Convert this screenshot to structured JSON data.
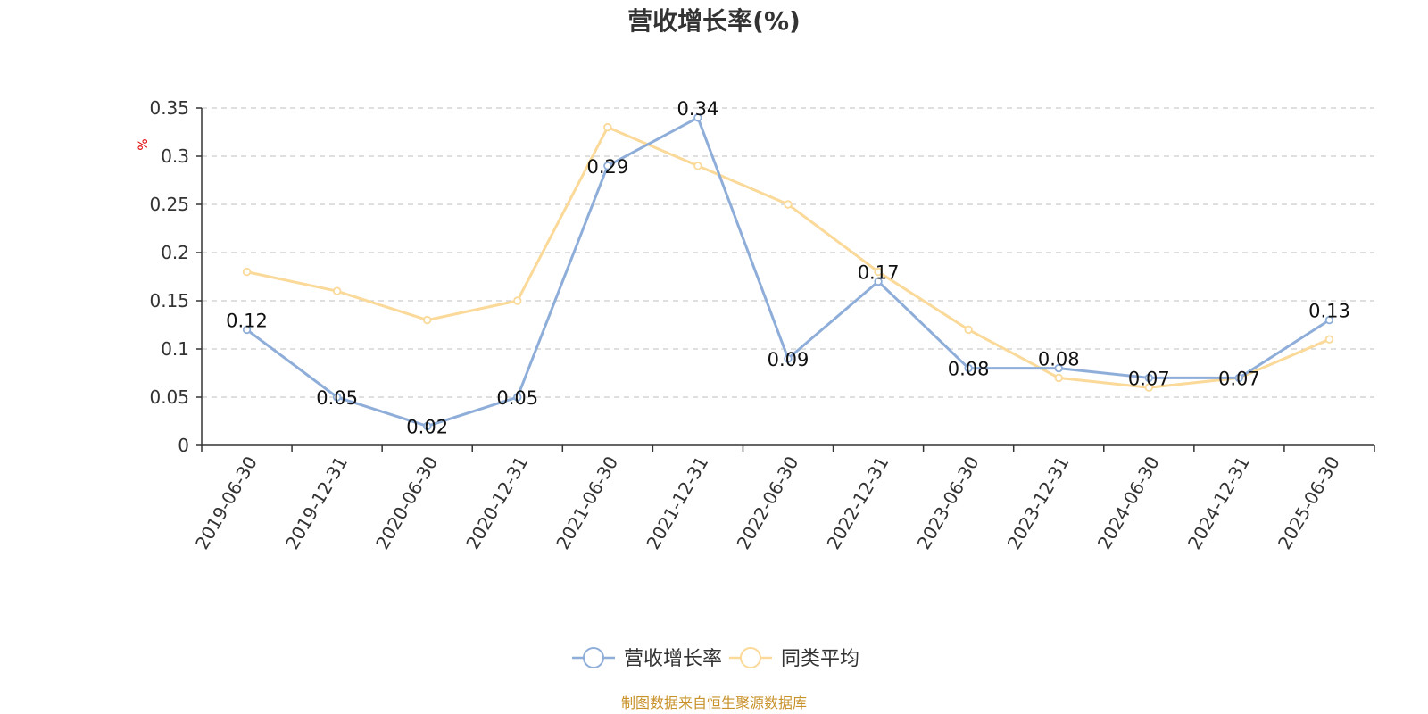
{
  "chart_data": {
    "type": "line",
    "title": "营收增长率(%)",
    "ylabel": "%",
    "xlabel": "",
    "categories": [
      "2019-06-30",
      "2019-12-31",
      "2020-06-30",
      "2020-12-31",
      "2021-06-30",
      "2021-12-31",
      "2022-06-30",
      "2022-12-31",
      "2023-06-30",
      "2023-12-31",
      "2024-06-30",
      "2024-12-31",
      "2025-06-30"
    ],
    "series": [
      {
        "name": "营收增长率",
        "color": "#8eaed9",
        "values": [
          0.12,
          0.05,
          0.02,
          0.05,
          0.29,
          0.34,
          0.09,
          0.17,
          0.08,
          0.08,
          0.07,
          0.07,
          0.13
        ],
        "labels": [
          "0.12",
          "0.05",
          "0.02",
          "0.05",
          "0.29",
          "0.34",
          "0.09",
          "0.17",
          "0.08",
          "0.08",
          "0.07",
          "0.07",
          "0.13"
        ]
      },
      {
        "name": "同类平均",
        "color": "#fad999",
        "values": [
          0.18,
          0.16,
          0.13,
          0.15,
          0.33,
          0.29,
          0.25,
          0.18,
          0.12,
          0.07,
          0.06,
          0.07,
          0.11
        ]
      }
    ],
    "ylim": [
      0,
      0.35
    ],
    "yticks": [
      0,
      0.05,
      0.1,
      0.15,
      0.2,
      0.25,
      0.3,
      0.35
    ],
    "ytick_labels": [
      "0",
      "0.05",
      "0.1",
      "0.15",
      "0.2",
      "0.25",
      "0.3",
      "0.35"
    ],
    "grid": true,
    "legend_position": "bottom-center"
  },
  "source_note": "制图数据来自恒生聚源数据库",
  "colors": {
    "axis": "#333333",
    "grid": "#cccccc",
    "source": "#c8922a"
  }
}
